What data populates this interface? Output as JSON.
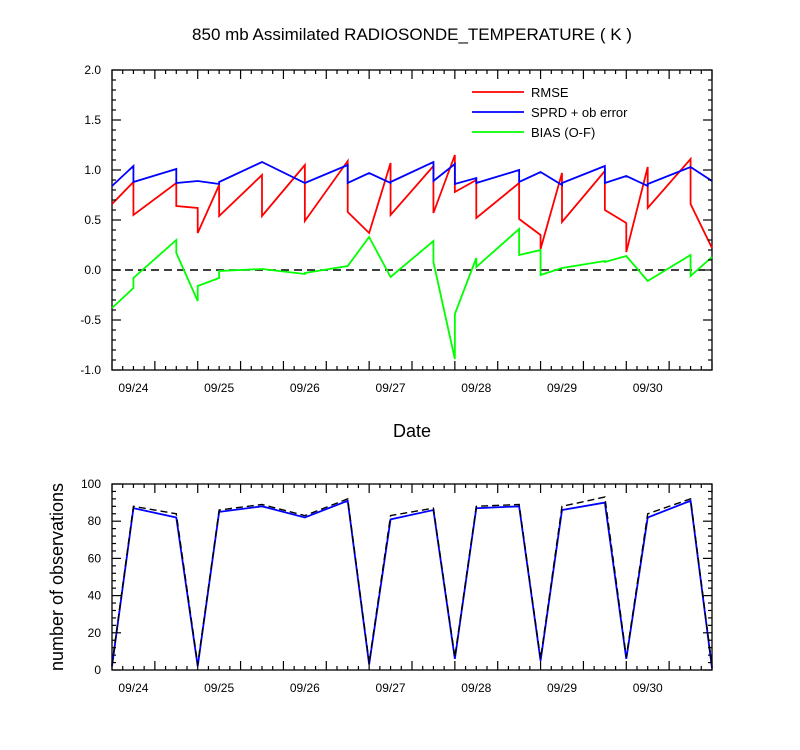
{
  "chart_data": [
    {
      "type": "line",
      "title": "850 mb Assimilated RADIOSONDE_TEMPERATURE ( K )",
      "xlabel": "Date",
      "ylabel": "",
      "x_ticklabels": [
        "09/24",
        "09/25",
        "09/26",
        "09/27",
        "09/28",
        "09/29",
        "09/30"
      ],
      "x_range_days": [
        0.0,
        7.0
      ],
      "ylim": [
        -1.0,
        2.0
      ],
      "y_ticks": [
        -1.0,
        -0.5,
        0.0,
        0.5,
        1.0,
        1.5,
        2.0
      ],
      "y_ticklabels": [
        "-1.0",
        "-0.5",
        "0.0",
        "0.5",
        "1.0",
        "1.5",
        "2.0"
      ],
      "zero_line": "dashed black",
      "legend_position": "top-right",
      "series": [
        {
          "name": "RMSE",
          "color": "#ff0000",
          "x": [
            0.0,
            0.25,
            0.25,
            0.75,
            0.75,
            1.0,
            1.0,
            1.25,
            1.25,
            1.75,
            1.75,
            2.25,
            2.25,
            2.75,
            2.75,
            3.0,
            3.25,
            3.25,
            3.75,
            3.75,
            4.0,
            4.0,
            4.25,
            4.25,
            4.75,
            4.75,
            5.0,
            5.0,
            5.25,
            5.25,
            5.75,
            5.75,
            6.0,
            6.0,
            6.25,
            6.25,
            6.75,
            6.75,
            7.0
          ],
          "y": [
            0.66,
            0.88,
            0.55,
            0.87,
            0.64,
            0.62,
            0.37,
            0.85,
            0.54,
            0.95,
            0.54,
            1.05,
            0.49,
            1.09,
            0.58,
            0.37,
            1.07,
            0.55,
            1.04,
            0.57,
            1.15,
            0.78,
            0.9,
            0.52,
            0.87,
            0.51,
            0.35,
            0.21,
            0.97,
            0.48,
            0.99,
            0.6,
            0.47,
            0.18,
            1.03,
            0.62,
            1.11,
            0.66,
            0.22
          ]
        },
        {
          "name": "SPRD + ob error",
          "color": "#0000ff",
          "x": [
            0.0,
            0.25,
            0.25,
            0.75,
            0.75,
            1.0,
            1.25,
            1.25,
            1.75,
            2.25,
            2.75,
            2.75,
            3.0,
            3.25,
            3.25,
            3.75,
            3.75,
            4.0,
            4.0,
            4.25,
            4.25,
            4.75,
            4.75,
            5.0,
            5.25,
            5.25,
            5.75,
            5.75,
            6.0,
            6.25,
            6.25,
            6.75,
            7.0
          ],
          "y": [
            0.84,
            1.04,
            0.88,
            1.01,
            0.87,
            0.89,
            0.86,
            0.88,
            1.08,
            0.87,
            1.05,
            0.87,
            0.97,
            0.87,
            0.88,
            1.08,
            0.89,
            1.06,
            0.86,
            0.92,
            0.87,
            1.0,
            0.88,
            0.98,
            0.85,
            0.87,
            1.04,
            0.87,
            0.94,
            0.84,
            0.86,
            1.03,
            0.89
          ]
        },
        {
          "name": "BIAS (O-F)",
          "color": "#00ff00",
          "x": [
            0.0,
            0.25,
            0.25,
            0.75,
            0.75,
            1.0,
            1.0,
            1.25,
            1.25,
            1.75,
            2.25,
            2.25,
            2.75,
            3.0,
            3.25,
            3.75,
            3.75,
            4.0,
            4.0,
            4.25,
            4.25,
            4.75,
            4.75,
            5.0,
            5.0,
            5.25,
            5.75,
            5.75,
            6.0,
            6.25,
            6.75,
            6.75,
            7.0
          ],
          "y": [
            -0.38,
            -0.18,
            -0.08,
            0.3,
            0.17,
            -0.31,
            -0.16,
            -0.08,
            -0.01,
            0.01,
            -0.04,
            -0.03,
            0.04,
            0.33,
            -0.07,
            0.29,
            0.08,
            -0.89,
            -0.44,
            0.12,
            0.03,
            0.41,
            0.15,
            0.2,
            -0.05,
            0.02,
            0.09,
            0.08,
            0.14,
            -0.11,
            0.15,
            -0.06,
            0.13
          ]
        }
      ]
    },
    {
      "type": "line",
      "title": "",
      "xlabel": "",
      "ylabel": "number of observations",
      "x_ticklabels": [
        "09/24",
        "09/25",
        "09/26",
        "09/27",
        "09/28",
        "09/29",
        "09/30"
      ],
      "x_range_days": [
        0.0,
        7.0
      ],
      "ylim": [
        0,
        100
      ],
      "y_ticks": [
        0,
        20,
        40,
        60,
        80,
        100
      ],
      "y_ticklabels": [
        "0",
        "20",
        "40",
        "60",
        "80",
        "100"
      ],
      "series": [
        {
          "style": "solid",
          "color": "#0000ff",
          "x": [
            0.0,
            0.25,
            0.75,
            1.0,
            1.25,
            1.75,
            2.25,
            2.75,
            3.0,
            3.25,
            3.75,
            4.0,
            4.25,
            4.75,
            5.0,
            5.25,
            5.75,
            6.0,
            6.25,
            6.75,
            7.0
          ],
          "y": [
            2,
            87,
            82,
            2,
            85,
            88,
            82,
            91,
            3,
            81,
            86,
            6,
            87,
            88,
            5,
            86,
            90,
            6,
            82,
            91,
            1
          ]
        },
        {
          "style": "dashed",
          "color": "#000000",
          "x": [
            0.0,
            0.25,
            0.75,
            1.0,
            1.25,
            1.75,
            2.25,
            2.75,
            3.0,
            3.25,
            3.75,
            4.0,
            4.25,
            4.75,
            5.0,
            5.25,
            5.75,
            6.0,
            6.25,
            6.75,
            7.0
          ],
          "y": [
            3,
            88,
            84,
            3,
            86,
            89,
            83,
            92,
            4,
            83,
            87,
            7,
            88,
            89,
            6,
            88,
            93,
            7,
            84,
            92,
            2
          ]
        }
      ]
    }
  ]
}
